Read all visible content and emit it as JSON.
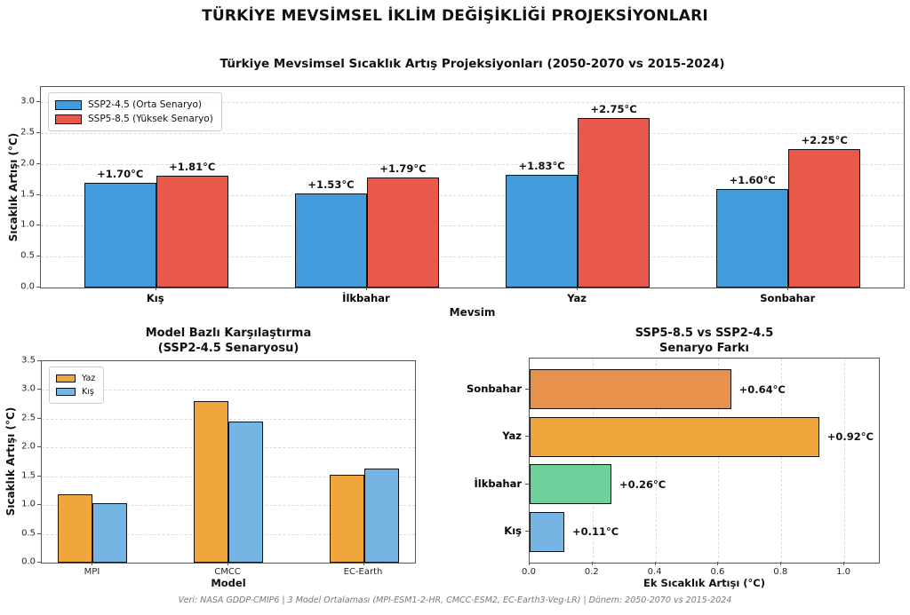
{
  "page_title": "TÜRKİYE MEVSİMSEL İKLİM DEĞİŞİKLİĞİ PROJEKSİYONLARI",
  "footer": "Veri: NASA GDDP-CMIP6 | 3 Model Ortalaması (MPI-ESM1-2-HR, CMCC-ESM2, EC-Earth3-Veg-LR) | Dönem: 2050-2070 vs 2015-2024",
  "colors": {
    "ssp2_blue": "#429bdb",
    "ssp5_red": "#e8594b",
    "yaz_orange": "#f0a63a",
    "kis_lightblue": "#74b5e3",
    "sonbahar_darkorange": "#e8914a",
    "ilkbahar_green": "#6fd09c",
    "bar_edge": "#111111",
    "grid": "#dcdcdc"
  },
  "chart_data": [
    {
      "type": "bar",
      "title": "Türkiye Mevsimsel Sıcaklık Artış Projeksiyonları (2050-2070 vs 2015-2024)",
      "categories": [
        "Kış",
        "İlkbahar",
        "Yaz",
        "Sonbahar"
      ],
      "series": [
        {
          "name": "SSP2-4.5 (Orta Senaryo)",
          "color": "#429bdb",
          "values": [
            1.7,
            1.53,
            1.83,
            1.6
          ],
          "labels": [
            "+1.70°C",
            "+1.53°C",
            "+1.83°C",
            "+1.60°C"
          ]
        },
        {
          "name": "SSP5-8.5 (Yüksek Senaryo)",
          "color": "#e8594b",
          "values": [
            1.81,
            1.79,
            2.75,
            2.25
          ],
          "labels": [
            "+1.81°C",
            "+1.79°C",
            "+2.75°C",
            "+2.25°C"
          ]
        }
      ],
      "xlabel": "Mevsim",
      "ylabel": "Sıcaklık Artışı (°C)",
      "ylim": [
        0,
        3.25
      ],
      "yticks": [
        0.0,
        0.5,
        1.0,
        1.5,
        2.0,
        2.5,
        3.0
      ],
      "grid": true,
      "legend_position": "upper-left"
    },
    {
      "type": "bar",
      "title": "Model Bazlı Karşılaştırma\n(SSP2-4.5 Senaryosu)",
      "categories": [
        "MPI",
        "CMCC",
        "EC-Earth"
      ],
      "series": [
        {
          "name": "Yaz",
          "color": "#f0a63a",
          "values": [
            1.19,
            2.81,
            1.52
          ]
        },
        {
          "name": "Kış",
          "color": "#74b5e3",
          "values": [
            1.04,
            2.45,
            1.63
          ]
        }
      ],
      "xlabel": "Model",
      "ylabel": "Sıcaklık Artışı (°C)",
      "ylim": [
        0,
        3.5
      ],
      "yticks": [
        0.0,
        0.5,
        1.0,
        1.5,
        2.0,
        2.5,
        3.0,
        3.5
      ],
      "grid": true,
      "legend_position": "upper-left"
    },
    {
      "type": "bar-horizontal",
      "title": "SSP5-8.5 vs SSP2-4.5\nSenaryo Farkı",
      "categories": [
        "Sonbahar",
        "Yaz",
        "İlkbahar",
        "Kış"
      ],
      "values": [
        0.64,
        0.92,
        0.26,
        0.11
      ],
      "labels": [
        "+0.64°C",
        "+0.92°C",
        "+0.26°C",
        "+0.11°C"
      ],
      "bar_colors": [
        "#e8914a",
        "#f0a63a",
        "#6fd09c",
        "#74b5e3"
      ],
      "xlabel": "Ek Sıcaklık Artışı (°C)",
      "xlim": [
        0,
        1.11
      ],
      "xticks": [
        0.0,
        0.2,
        0.4,
        0.6,
        0.8,
        1.0
      ],
      "grid": true
    }
  ]
}
